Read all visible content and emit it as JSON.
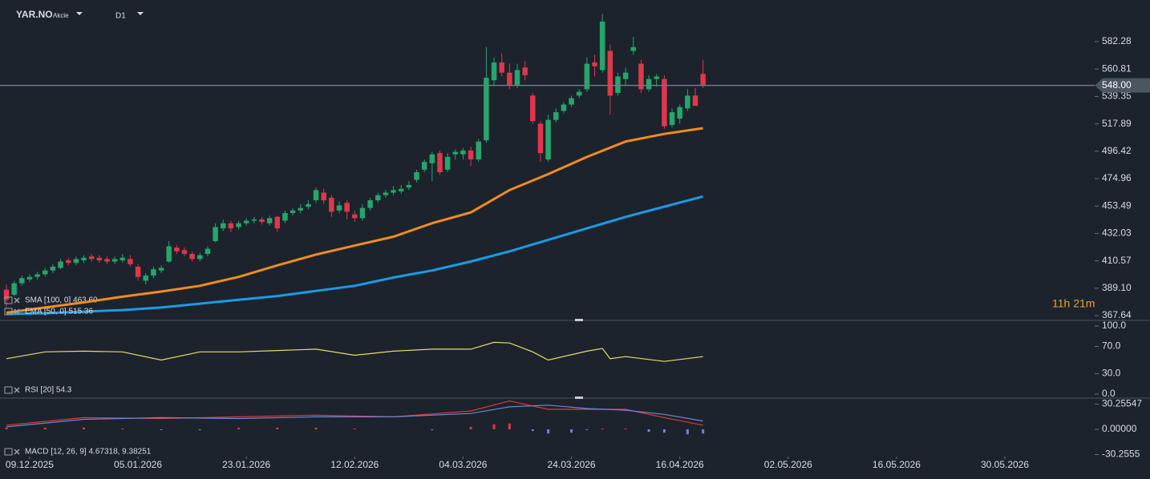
{
  "header": {
    "symbol": "YAR.NO",
    "asset_class": "Akcie",
    "timeframe": "D1"
  },
  "countdown": "11h 21m",
  "chart_data": [
    {
      "type": "candlestick",
      "x": [
        0,
        1,
        2,
        3,
        4,
        5,
        6,
        7,
        8,
        9,
        10,
        11,
        12,
        13,
        14,
        15,
        16,
        17,
        18,
        19,
        20,
        21,
        22,
        23,
        24,
        25,
        26,
        27,
        28,
        29,
        30,
        31,
        32,
        33,
        34,
        35,
        36,
        37,
        38,
        39,
        40,
        41,
        42,
        43,
        44,
        45,
        46,
        47,
        48,
        49,
        50,
        51,
        52,
        53,
        54,
        55,
        56,
        57,
        58,
        59,
        60,
        61,
        62,
        63,
        64,
        65,
        66,
        67,
        68,
        69,
        70,
        71,
        72,
        73,
        74,
        75,
        76,
        77,
        78,
        79,
        80,
        81,
        82,
        83,
        84,
        85,
        86,
        87,
        88,
        89,
        90
      ],
      "open": [
        388,
        384,
        393,
        396,
        398,
        400,
        403,
        405,
        411,
        409,
        411,
        414,
        413,
        412,
        410,
        411,
        412,
        406,
        395,
        399,
        403,
        410,
        421,
        419,
        416,
        412,
        416,
        426,
        436,
        440,
        437,
        440,
        442,
        443,
        440,
        445,
        442,
        448,
        450,
        453,
        458,
        464,
        460,
        450,
        456,
        447,
        444,
        452,
        458,
        462,
        464,
        465,
        468,
        474,
        482,
        487,
        495,
        482,
        494,
        494,
        497,
        490,
        505,
        552,
        566,
        558,
        548,
        562,
        540,
        518,
        490,
        521,
        528,
        533,
        540,
        545,
        566,
        560,
        575,
        542,
        553,
        575,
        565,
        545,
        553,
        553,
        517,
        522,
        530,
        540,
        557
      ],
      "high": [
        392,
        395,
        399,
        400,
        402,
        405,
        408,
        412,
        413,
        414,
        415,
        416,
        415,
        414,
        414,
        416,
        415,
        408,
        401,
        406,
        407,
        426,
        423,
        421,
        418,
        417,
        422,
        440,
        443,
        442,
        442,
        444,
        445,
        445,
        446,
        446,
        450,
        452,
        455,
        458,
        468,
        467,
        462,
        457,
        458,
        450,
        455,
        460,
        464,
        466,
        469,
        470,
        473,
        482,
        490,
        496,
        497,
        495,
        498,
        499,
        500,
        506,
        578,
        570,
        573,
        565,
        565,
        567,
        542,
        520,
        525,
        530,
        535,
        540,
        545,
        570,
        572,
        604,
        580,
        558,
        562,
        586,
        568,
        556,
        557,
        556,
        530,
        533,
        545,
        546,
        568
      ],
      "low": [
        374,
        383,
        391,
        394,
        396,
        398,
        401,
        404,
        407,
        407,
        409,
        410,
        409,
        408,
        408,
        409,
        406,
        395,
        392,
        397,
        401,
        409,
        416,
        414,
        410,
        410,
        414,
        425,
        434,
        433,
        435,
        438,
        440,
        439,
        438,
        433,
        440,
        446,
        448,
        451,
        456,
        455,
        445,
        448,
        443,
        441,
        442,
        450,
        456,
        460,
        462,
        463,
        466,
        472,
        480,
        473,
        478,
        480,
        490,
        490,
        485,
        488,
        503,
        548,
        555,
        545,
        546,
        552,
        518,
        488,
        488,
        519,
        526,
        531,
        538,
        543,
        555,
        558,
        525,
        540,
        548,
        572,
        542,
        543,
        547,
        514,
        515,
        518,
        528,
        532,
        546
      ],
      "close": [
        380,
        393,
        397,
        398,
        400,
        403,
        406,
        410,
        409,
        412,
        413,
        412,
        411,
        410,
        412,
        413,
        408,
        398,
        399,
        404,
        405,
        422,
        418,
        416,
        412,
        415,
        420,
        437,
        440,
        436,
        440,
        442,
        443,
        441,
        444,
        436,
        448,
        450,
        452,
        455,
        466,
        458,
        449,
        454,
        449,
        444,
        452,
        458,
        462,
        464,
        466,
        467,
        470,
        480,
        488,
        494,
        480,
        492,
        496,
        497,
        490,
        504,
        554,
        566,
        558,
        548,
        560,
        556,
        520,
        495,
        521,
        527,
        533,
        538,
        543,
        565,
        563,
        598,
        540,
        555,
        558,
        578,
        545,
        553,
        555,
        516,
        527,
        531,
        540,
        532,
        548
      ],
      "up_color": "#26a66b",
      "down_color": "#e0374a",
      "xlim": [
        -0.83,
        140.6
      ],
      "ylim": [
        363.9,
        614.9
      ],
      "yticks": [
        582.28,
        560.81,
        539.35,
        517.89,
        496.42,
        474.96,
        453.49,
        432.03,
        410.57,
        {
          "value": 389.1,
          "label": "389.10"
        },
        367.64
      ],
      "last_price": {
        "value": 548,
        "label": "548.00"
      },
      "series": [
        {
          "name": "SMA [100, 0] 463.60",
          "color": "#1a9be6",
          "x": [
            0,
            5,
            10,
            15,
            20,
            25,
            30,
            35,
            40,
            45,
            50,
            55,
            60,
            65,
            70,
            75,
            80,
            85,
            90
          ],
          "values": [
            368.9,
            369.5,
            370.8,
            372,
            374,
            377,
            380,
            383,
            387,
            391,
            397.5,
            403,
            410,
            418,
            427,
            436,
            445,
            453,
            461
          ]
        },
        {
          "name": "EMA [50, 0] 515.36",
          "color": "#f28c1c",
          "x": [
            0,
            5,
            10,
            15,
            20,
            25,
            30,
            35,
            40,
            45,
            50,
            55,
            60,
            65,
            70,
            75,
            80,
            85,
            90
          ],
          "values": [
            370,
            374,
            378,
            382.5,
            386.5,
            391,
            398,
            407,
            415.5,
            422.5,
            429.5,
            440,
            448.5,
            466,
            478.5,
            492,
            504,
            510,
            514.5
          ]
        }
      ]
    },
    {
      "type": "line",
      "xlim": [
        -0.83,
        140.6
      ],
      "ylim": [
        -5.9,
        108.2
      ],
      "yticks": [
        {
          "value": 100,
          "label": "100.0"
        },
        {
          "value": 70,
          "label": "70.0"
        },
        {
          "value": 30,
          "label": "30.0"
        },
        {
          "value": 0,
          "label": "0.0"
        }
      ],
      "series": [
        {
          "name": "RSI [20] 54.3",
          "color": "#e3dd6a",
          "x": [
            0,
            5,
            10,
            15,
            20,
            25,
            30,
            35,
            40,
            45,
            50,
            55,
            60,
            63,
            65,
            68,
            70,
            75,
            77,
            78,
            80,
            85,
            90
          ],
          "values": [
            52,
            62,
            63,
            62,
            50,
            62,
            62,
            64,
            66,
            57,
            63,
            66,
            66,
            76,
            75,
            62,
            50,
            63,
            67,
            52,
            55,
            48,
            55
          ]
        }
      ]
    },
    {
      "type": "macd",
      "title": "MACD [12, 26, 9] 4.67318, 9.38251",
      "xlim": [
        -0.83,
        140.6
      ],
      "ylim": [
        -32.66,
        37.46
      ],
      "yticks": [
        30.25547,
        {
          "value": 0,
          "label": "0.00000"
        },
        -30.2555
      ],
      "xticks": [
        {
          "value": 3,
          "label": "09.12.2025"
        },
        {
          "value": 17,
          "label": "05.01.2026"
        },
        {
          "value": 31,
          "label": "23.01.2026"
        },
        {
          "value": 45,
          "label": "12.02.2026"
        },
        {
          "value": 59,
          "label": "04.03.2026"
        },
        {
          "value": 73,
          "label": "24.03.2026"
        },
        {
          "value": 87,
          "label": "16.04.2026"
        },
        {
          "value": 101,
          "label": "02.05.2026"
        },
        {
          "value": 115,
          "label": "16.05.2026"
        },
        {
          "value": 129,
          "label": "30.05.2026"
        }
      ],
      "series": [
        {
          "type": "bar",
          "color": "#e0383e",
          "negative_color": "#7b7fe0",
          "x": [
            0,
            5,
            10,
            15,
            20,
            25,
            30,
            35,
            40,
            45,
            50,
            55,
            60,
            63,
            65,
            68,
            70,
            73,
            75,
            77,
            80,
            83,
            85,
            88,
            90
          ],
          "values": [
            2,
            2,
            2,
            1,
            -1,
            -1,
            2,
            2,
            2,
            1,
            0,
            -1,
            3,
            6,
            7,
            -2,
            -5,
            -4,
            -1,
            1,
            1,
            -3,
            -4,
            -6,
            -5
          ]
        },
        {
          "type": "line",
          "color": "#e0383e",
          "x": [
            0,
            10,
            20,
            30,
            40,
            50,
            60,
            65,
            70,
            75,
            80,
            85,
            90
          ],
          "values": [
            5,
            14,
            13,
            15,
            17,
            15,
            22,
            34,
            24,
            24,
            24,
            14,
            5
          ]
        },
        {
          "type": "line",
          "color": "#6f86d6",
          "x": [
            0,
            10,
            20,
            30,
            40,
            50,
            60,
            65,
            70,
            75,
            80,
            85,
            90
          ],
          "values": [
            3,
            12,
            14,
            13,
            15,
            15,
            19,
            27,
            29,
            25,
            23,
            18,
            10
          ]
        }
      ]
    }
  ]
}
